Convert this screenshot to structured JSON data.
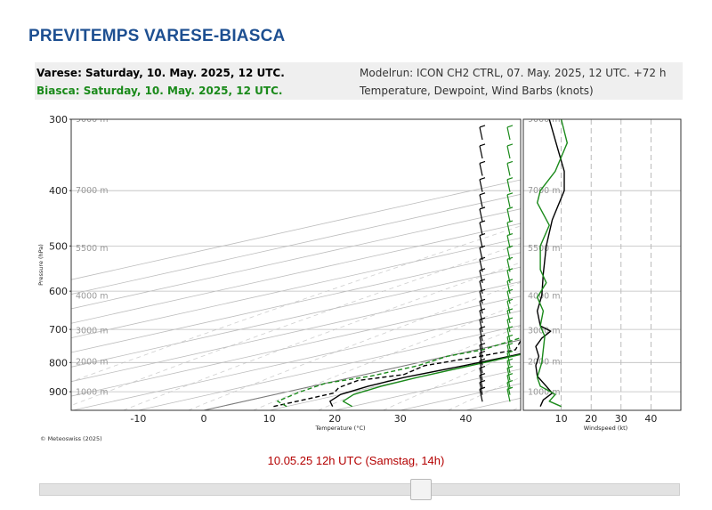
{
  "page": {
    "title": "PREVITEMPS VARESE-BIASCA"
  },
  "header": {
    "varese_line": "Varese: Saturday, 10. May. 2025, 12 UTC.",
    "biasca_line": "Biasca: Saturday, 10. May. 2025, 12 UTC.",
    "modelrun": "Modelrun: ICON CH2 CTRL, 07. May. 2025, 12 UTC. +72 h",
    "legend_text": "Temperature, Dewpoint, Wind Barbs (knots)"
  },
  "colors": {
    "varese": "#000000",
    "biasca": "#1a8a1a",
    "title": "#1d4f91",
    "time": "#b40000",
    "grid": "#c8c8c8"
  },
  "copyright": "© Meteoswiss (2025)",
  "time_label": "10.05.25 12h UTC (Samstag, 14h)",
  "slider": {
    "value": 0.6
  },
  "chart_data": [
    {
      "type": "line",
      "subtype": "skew-T log-p",
      "xlabel": "Temperature (°C)",
      "ylabel": "Pressure (hPa)",
      "xlim": [
        -20,
        45
      ],
      "ylim": [
        970,
        300
      ],
      "y_scale": "log",
      "x_ticks": [
        "-10",
        "0",
        "10",
        "20",
        "30",
        "40"
      ],
      "y_ticks": [
        "300",
        "400",
        "500",
        "600",
        "700",
        "800",
        "900"
      ],
      "height_labels": [
        {
          "p": 300,
          "label": "9000 m"
        },
        {
          "p": 400,
          "label": "7000 m"
        },
        {
          "p": 505,
          "label": "5500 m"
        },
        {
          "p": 612,
          "label": "4000 m"
        },
        {
          "p": 703,
          "label": "3000 m"
        },
        {
          "p": 797,
          "label": "2000 m"
        },
        {
          "p": 902,
          "label": "1000 m"
        }
      ],
      "series": [
        {
          "name": "Varese",
          "variable": "temperature",
          "color": "#000000",
          "dash": "solid",
          "points": [
            [
              17,
              955
            ],
            [
              13,
              935
            ],
            [
              10,
              910
            ],
            [
              8.5,
              880
            ],
            [
              8,
              850
            ],
            [
              9,
              810
            ],
            [
              9.5,
              780
            ],
            [
              9.5,
              745
            ],
            [
              8.5,
              700
            ],
            [
              7,
              660
            ],
            [
              6.5,
              640
            ],
            [
              5,
              600
            ],
            [
              1,
              550
            ],
            [
              -4,
              500
            ],
            [
              -9,
              450
            ],
            [
              -16,
              400
            ],
            [
              -24,
              350
            ],
            [
              -33,
              300
            ]
          ]
        },
        {
          "name": "Biasca",
          "variable": "temperature",
          "color": "#1a8a1a",
          "dash": "solid",
          "points": [
            [
              20,
              955
            ],
            [
              15,
              935
            ],
            [
              12,
              910
            ],
            [
              10.5,
              880
            ],
            [
              10,
              850
            ],
            [
              10,
              810
            ],
            [
              10,
              780
            ],
            [
              10,
              745
            ],
            [
              8.5,
              700
            ],
            [
              7,
              660
            ],
            [
              6,
              640
            ],
            [
              5,
              600
            ],
            [
              1,
              550
            ],
            [
              -4,
              500
            ],
            [
              -9,
              450
            ],
            [
              -16,
              400
            ],
            [
              -24,
              350
            ],
            [
              -34,
              300
            ]
          ]
        },
        {
          "name": "Varese",
          "variable": "dewpoint",
          "color": "#000000",
          "dash": "dashed",
          "points": [
            [
              8,
              955
            ],
            [
              8,
              930
            ],
            [
              8,
              905
            ],
            [
              5,
              885
            ],
            [
              3,
              860
            ],
            [
              6,
              840
            ],
            [
              3,
              810
            ],
            [
              5,
              780
            ],
            [
              6,
              760
            ],
            [
              -2,
              720
            ],
            [
              -2,
              680
            ],
            [
              -5,
              640
            ],
            [
              -10,
              612
            ],
            [
              -20,
              585
            ],
            [
              -28,
              560
            ],
            [
              -33,
              530
            ],
            [
              -40,
              500
            ],
            [
              -45,
              450
            ],
            [
              -52,
              400
            ],
            [
              -60,
              350
            ],
            [
              -70,
              300
            ]
          ]
        },
        {
          "name": "Biasca",
          "variable": "dewpoint",
          "color": "#1a8a1a",
          "dash": "dashed",
          "points": [
            [
              10,
              955
            ],
            [
              5,
              935
            ],
            [
              2,
              900
            ],
            [
              0,
              870
            ],
            [
              2,
              845
            ],
            [
              2,
              810
            ],
            [
              0,
              780
            ],
            [
              1,
              760
            ],
            [
              -1,
              730
            ],
            [
              -3,
              700
            ],
            [
              -6,
              660
            ],
            [
              -14,
              630
            ],
            [
              -26,
              610
            ],
            [
              -36,
              590
            ],
            [
              -38,
              560
            ],
            [
              -45,
              500
            ],
            [
              -48,
              450
            ],
            [
              -50,
              400
            ],
            [
              -45,
              370
            ],
            [
              -52,
              350
            ],
            [
              -62,
              330
            ],
            [
              -60,
              300
            ]
          ]
        }
      ]
    },
    {
      "type": "line",
      "xlabel": "Windspeed (kt)",
      "xlim": [
        0,
        50
      ],
      "x_ticks": [
        "10",
        "20",
        "30",
        "40"
      ],
      "series": [
        {
          "name": "Varese",
          "color": "#000000",
          "points": [
            [
              3,
              955
            ],
            [
              4,
              930
            ],
            [
              7,
              905
            ],
            [
              5,
              880
            ],
            [
              2,
              845
            ],
            [
              1.5,
              810
            ],
            [
              2.5,
              780
            ],
            [
              1.5,
              750
            ],
            [
              3.5,
              725
            ],
            [
              6.5,
              705
            ],
            [
              3,
              690
            ],
            [
              2,
              650
            ],
            [
              3.5,
              610
            ],
            [
              4,
              560
            ],
            [
              5,
              500
            ],
            [
              7,
              450
            ],
            [
              11,
              400
            ],
            [
              11,
              370
            ],
            [
              9,
              340
            ],
            [
              6,
              300
            ]
          ]
        },
        {
          "name": "Biasca",
          "color": "#1a8a1a",
          "points": [
            [
              10,
              955
            ],
            [
              6,
              935
            ],
            [
              8,
              910
            ],
            [
              3,
              880
            ],
            [
              2,
              850
            ],
            [
              3.5,
              800
            ],
            [
              4,
              760
            ],
            [
              4.5,
              720
            ],
            [
              3,
              690
            ],
            [
              4,
              650
            ],
            [
              2,
              615
            ],
            [
              5,
              580
            ],
            [
              3,
              550
            ],
            [
              3,
              500
            ],
            [
              6,
              460
            ],
            [
              2,
              420
            ],
            [
              3,
              400
            ],
            [
              8,
              370
            ],
            [
              12,
              330
            ],
            [
              10,
              300
            ]
          ]
        }
      ]
    }
  ]
}
